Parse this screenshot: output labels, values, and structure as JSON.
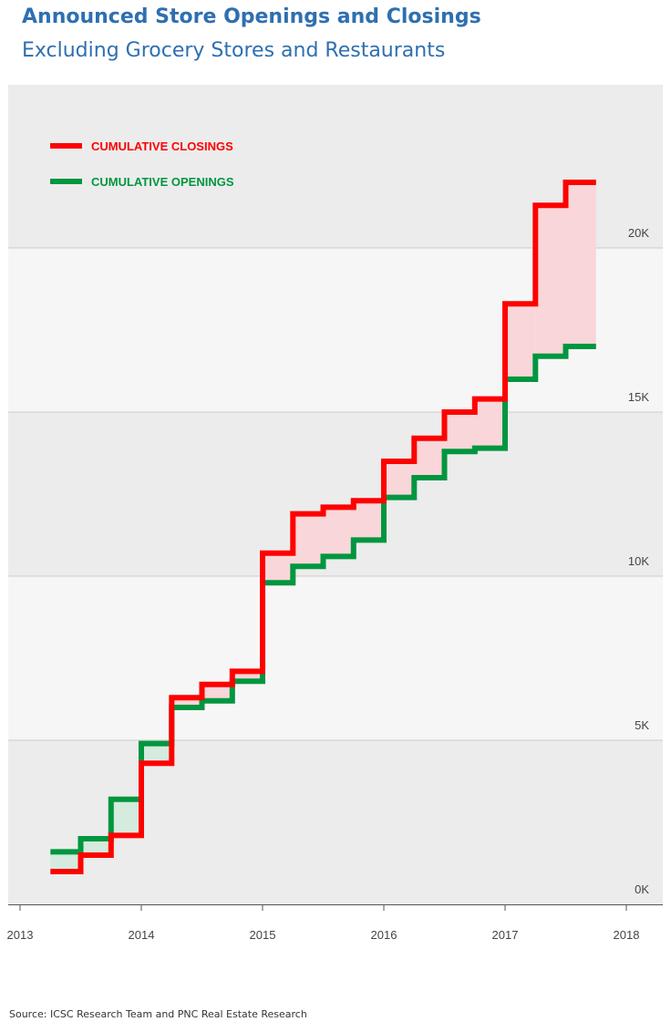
{
  "chart_data": {
    "type": "line",
    "step": true,
    "title": "Announced Store Openings and Closings",
    "subtitle": "Excluding Grocery Stores and Restaurants",
    "source": "Source: ICSC Research Team and PNC Real Estate Research",
    "x_ticks": [
      "2013",
      "2014",
      "2015",
      "2016",
      "2017",
      "2018"
    ],
    "y_ticks": [
      "0K",
      "5K",
      "10K",
      "15K",
      "20K"
    ],
    "xlim": [
      2013,
      2018
    ],
    "ylim": [
      0,
      25000
    ],
    "band_shading": true,
    "legend_position": "top-left",
    "x_quarters": [
      "2013 Q2",
      "2013 Q3",
      "2013 Q4",
      "2014 Q1",
      "2014 Q2",
      "2014 Q3",
      "2014 Q4",
      "2015 Q1",
      "2015 Q2",
      "2015 Q3",
      "2015 Q4",
      "2016 Q1",
      "2016 Q2",
      "2016 Q3",
      "2016 Q4",
      "2017 Q1",
      "2017 Q2",
      "2017 Q3"
    ],
    "series": [
      {
        "name": "CUMULATIVE CLOSINGS",
        "color": "#ff0000",
        "values": [
          1000,
          1500,
          2100,
          4300,
          6300,
          6700,
          7100,
          10700,
          11900,
          12100,
          12300,
          13500,
          14200,
          15000,
          15400,
          18300,
          21300,
          22000
        ]
      },
      {
        "name": "CUMULATIVE OPENINGS",
        "color": "#00963f",
        "values": [
          1600,
          2000,
          3200,
          4900,
          6000,
          6200,
          6800,
          9800,
          10300,
          10600,
          11100,
          12400,
          13000,
          13800,
          13900,
          16000,
          16700,
          17000
        ]
      }
    ]
  }
}
